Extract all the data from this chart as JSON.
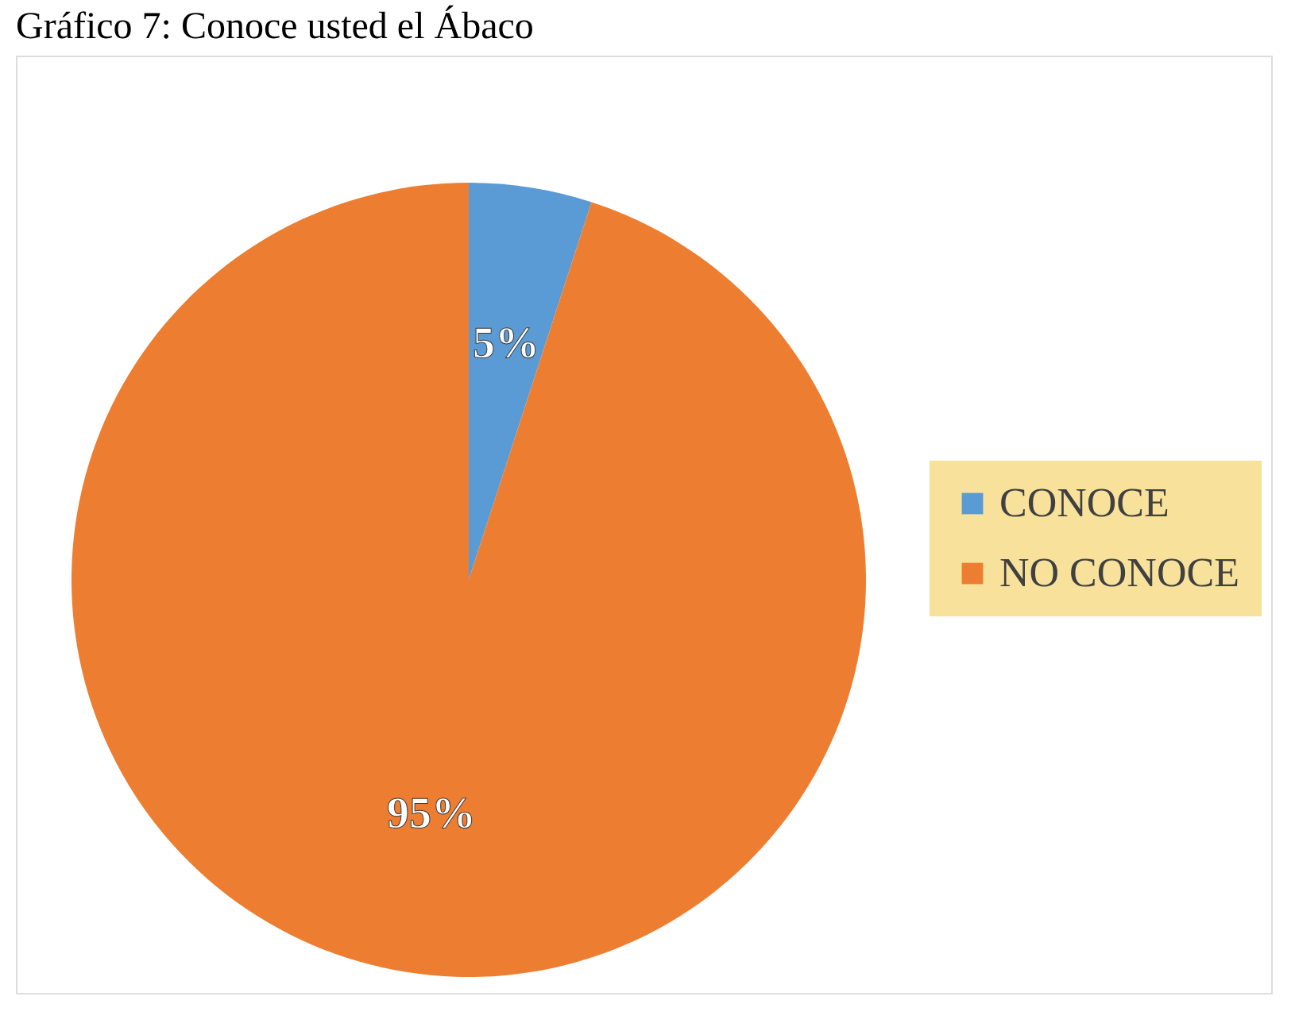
{
  "chart_data": {
    "type": "pie",
    "title": "Gráfico 7: Conoce usted el Ábaco",
    "categories": [
      "CONOCE",
      "NO CONOCE"
    ],
    "values": [
      5,
      95
    ],
    "colors": [
      "#5b9bd5",
      "#ed7d31"
    ],
    "value_labels": [
      "5%",
      "95%"
    ],
    "legend": "right"
  }
}
